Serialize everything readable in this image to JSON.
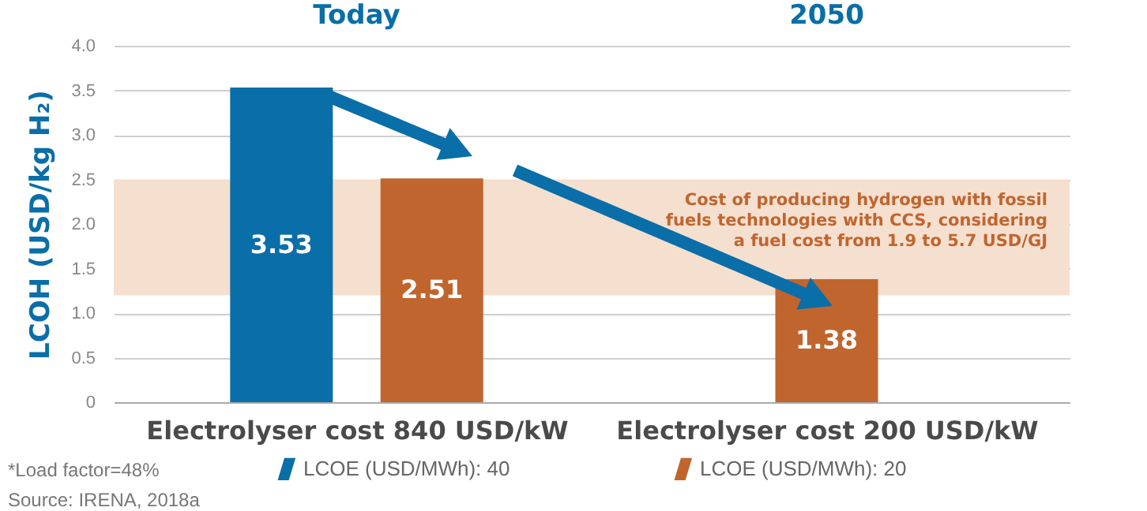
{
  "chart_data": {
    "type": "bar",
    "ylabel": "LCOH (USD/kg H₂)",
    "categories": [
      "Electrolyser cost 840 USD/kW",
      "Electrolyser cost 200 USD/kW"
    ],
    "series": [
      {
        "name": "LCOE (USD/MWh): 40",
        "color": "#0a6ea8",
        "values": [
          3.53,
          null
        ]
      },
      {
        "name": "LCOE (USD/MWh): 20",
        "color": "#c0652e",
        "values": [
          2.51,
          1.38
        ]
      }
    ],
    "ylim": [
      0,
      4
    ],
    "yticks": [
      0,
      0.5,
      {
        "value": 1,
        "label": "1.0"
      },
      {
        "value": 1.5,
        "label": "1.5"
      },
      {
        "value": 2,
        "label": "2.0"
      },
      {
        "value": 2.5,
        "label": "2.5"
      },
      {
        "value": 3,
        "label": "3.0"
      },
      {
        "value": 3.5,
        "label": "3.5"
      },
      {
        "value": 4,
        "label": "4.0"
      }
    ],
    "grid": "y",
    "legend": "bottom",
    "data_labels": true,
    "bands": [
      {
        "axis": "y",
        "from": 1.2,
        "to": 2.5,
        "label": "Cost of producing hydrogen with fossil fuels technologies with CCS, considering a fuel cost from 1.9 to 5.7 USD/GJ",
        "color": "#f5dfcf"
      }
    ],
    "annotations": [
      "Today",
      "2050",
      "*Load factor=48%",
      "Source: IRENA, 2018a"
    ]
  }
}
